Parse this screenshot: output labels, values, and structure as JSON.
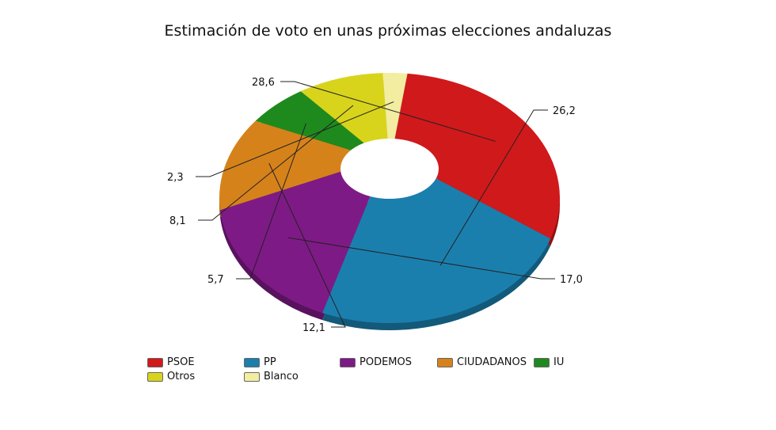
{
  "chart_data": {
    "type": "pie",
    "title": "Estimación de voto en unas próximas elecciones andaluzas",
    "categories": [
      "PSOE",
      "PP",
      "PODEMOS",
      "CIUDADANOS",
      "IU",
      "Otros",
      "Blanco"
    ],
    "values": [
      28.6,
      26.2,
      17.0,
      12.1,
      5.7,
      8.1,
      2.3
    ],
    "value_labels": [
      "28,6",
      "26,2",
      "17,0",
      "12,1",
      "5,7",
      "8,1",
      "2,3"
    ],
    "colors": [
      "#d0191b",
      "#1b7fae",
      "#7e1a86",
      "#d6821b",
      "#1e8a1e",
      "#d8d41c",
      "#f2eda0"
    ],
    "slice_order": [
      0,
      1,
      2,
      3,
      4,
      5,
      6
    ],
    "donut": true,
    "legend_position": "bottom"
  },
  "legend": {
    "items": [
      {
        "label": "PSOE",
        "color": "#d0191b"
      },
      {
        "label": "PP",
        "color": "#1b7fae"
      },
      {
        "label": "PODEMOS",
        "color": "#7e1a86"
      },
      {
        "label": "CIUDADANOS",
        "color": "#d6821b"
      },
      {
        "label": "IU",
        "color": "#1e8a1e"
      },
      {
        "label": "Otros",
        "color": "#d8d41c"
      },
      {
        "label": "Blanco",
        "color": "#f2eda0"
      }
    ]
  }
}
